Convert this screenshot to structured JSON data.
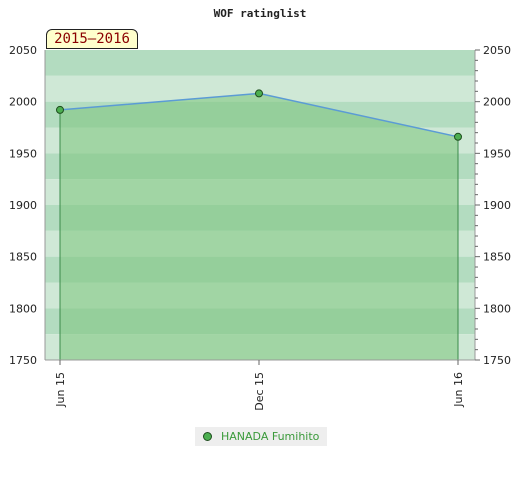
{
  "chart_data": {
    "type": "area",
    "title": "WOF ratinglist",
    "period_label": "2015–2016",
    "x_ticks": [
      "Jun 15",
      "Dec 15",
      "Jun 16"
    ],
    "y_ticks": [
      1750,
      1800,
      1850,
      1900,
      1950,
      2000,
      2050
    ],
    "ylim": [
      1750,
      2050
    ],
    "series": [
      {
        "name": "HANADA Fumihito",
        "x": [
          "Jun 15",
          "Dec 15",
          "Jun 16"
        ],
        "values": [
          1992,
          2008,
          1966
        ]
      }
    ],
    "legend_position": "bottom-center",
    "colors": {
      "line": "#5b9bd5",
      "area_fill": "#7cc47c",
      "marker": "#4caf50",
      "band_dark": "#b3dcc0",
      "band_light": "#cfe8d6"
    }
  }
}
